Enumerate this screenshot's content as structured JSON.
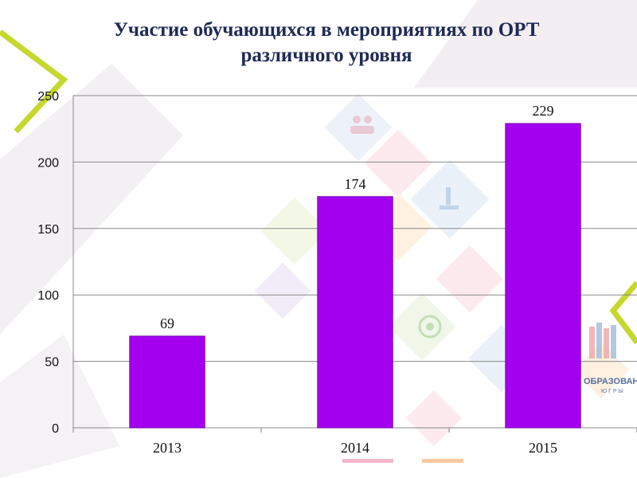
{
  "colors": {
    "bar": "#a300f0",
    "bar_edge": "#7a00b5",
    "title": "#1f2a55",
    "grid": "#888888",
    "accent_lime": "#c4d82e"
  },
  "watermark": {
    "logo_word_1": "ОБРАЗОВАНИЕ",
    "logo_word_2": "ЮГРЫ",
    "icons": [
      "people-icon",
      "microscope-icon",
      "globe-icon",
      "books-icon"
    ]
  },
  "chart_data": {
    "type": "bar",
    "title_line1": "Участие обучающихся в мероприятиях по ОРТ",
    "title_line2": "различного уровня",
    "categories": [
      "2013",
      "2014",
      "2015"
    ],
    "values": [
      69,
      174,
      229
    ],
    "data_labels": [
      "69",
      "174",
      "229"
    ],
    "xlabel": "",
    "ylabel": "",
    "ylim": [
      0,
      250
    ],
    "yticks": [
      "0",
      "50",
      "100",
      "150",
      "200",
      "250"
    ],
    "grid": true,
    "legend": "none"
  }
}
